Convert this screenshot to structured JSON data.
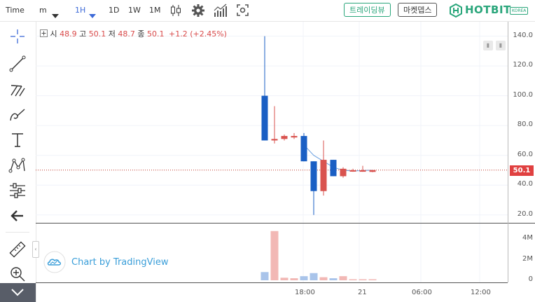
{
  "toolbar": {
    "symbol_label": "Time",
    "chart_style_label": "m",
    "intervals": [
      "1H",
      "1D",
      "1W",
      "1M"
    ],
    "selected_interval": "1H",
    "trading_view_button": "트레이딩뷰",
    "market_depth_button": "마켓뎁스",
    "brand_name": "HOTBIT",
    "brand_region": "KOREA",
    "brand_color": "#2aa67b"
  },
  "legend": {
    "open_label": "시",
    "open_value": "48.9",
    "high_label": "고",
    "high_value": "50.1",
    "low_label": "저",
    "low_value": "48.7",
    "close_label": "종",
    "close_value": "50.1",
    "change": "+1.2 (+2.45%)"
  },
  "price_axis": [
    "140.0",
    "120.0",
    "100.0",
    "80.0",
    "60.0",
    "40.0",
    "20.0"
  ],
  "volume_axis": [
    "4M",
    "2M",
    "0"
  ],
  "time_axis": [
    "18:00",
    "21",
    "06:00",
    "12:00"
  ],
  "last_price_label": "50.1",
  "watermark": "Chart by TradingView",
  "colors": {
    "up": "#d9534f",
    "down": "#1a5fc4",
    "up_volume": "#f2b8b5",
    "down_volume": "#a9c4ea",
    "ma_line": "#6aa0e0"
  },
  "chart_data": {
    "type": "candlestick",
    "price_ylim": [
      10,
      145
    ],
    "volume_ylim": [
      0,
      5.4
    ],
    "candles": [
      {
        "o": 100,
        "h": 140,
        "l": 70,
        "c": 70
      },
      {
        "o": 70,
        "h": 93,
        "l": 68,
        "c": 71
      },
      {
        "o": 71,
        "h": 74,
        "l": 70,
        "c": 73
      },
      {
        "o": 72,
        "h": 75,
        "l": 71,
        "c": 73
      },
      {
        "o": 73,
        "h": 75,
        "l": 56,
        "c": 56
      },
      {
        "o": 56,
        "h": 56,
        "l": 20,
        "c": 36
      },
      {
        "o": 36,
        "h": 70,
        "l": 33,
        "c": 57
      },
      {
        "o": 57,
        "h": 57,
        "l": 46,
        "c": 46
      },
      {
        "o": 46,
        "h": 52,
        "l": 45,
        "c": 51
      },
      {
        "o": 50,
        "h": 51,
        "l": 49,
        "c": 50
      },
      {
        "o": 49,
        "h": 53,
        "l": 49,
        "c": 50
      },
      {
        "o": 48.9,
        "h": 50.1,
        "l": 48.7,
        "c": 50.1
      }
    ],
    "volumes": [
      0.8,
      4.8,
      0.25,
      0.2,
      0.4,
      0.7,
      0.3,
      0.2,
      0.4,
      0.1,
      0.1,
      0.1
    ],
    "ma": [
      null,
      null,
      null,
      null,
      67,
      60,
      56,
      52,
      50,
      49.5,
      49.8,
      50
    ]
  }
}
